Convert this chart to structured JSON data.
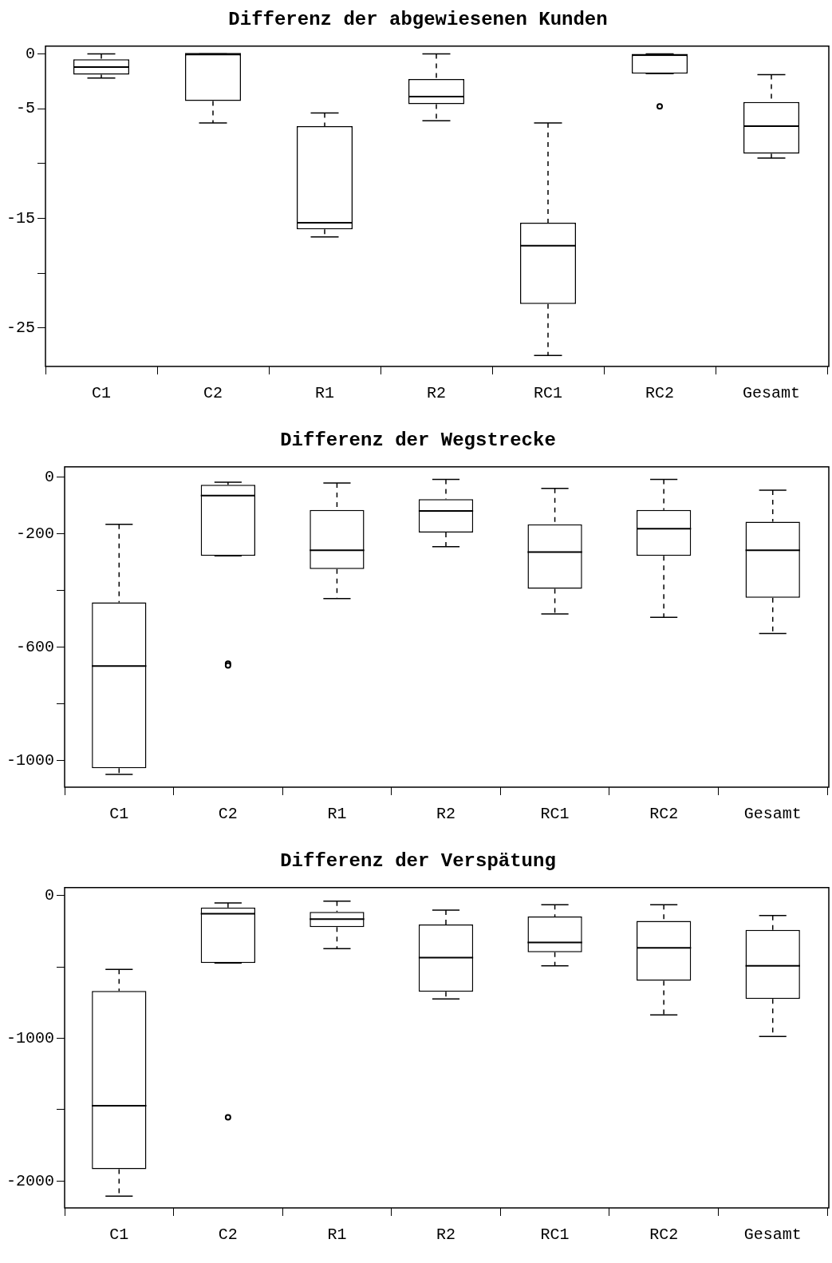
{
  "chart_data": [
    {
      "type": "box",
      "title": "Differenz der abgewiesenen Kunden",
      "categories": [
        "C1",
        "C2",
        "R1",
        "R2",
        "RC1",
        "RC2",
        "Gesamt"
      ],
      "ylim": [
        -28.5,
        0.7
      ],
      "yticks": [
        0,
        -5,
        {
          "value": -10,
          "label": null
        },
        -15,
        {
          "value": -20,
          "label": null
        },
        -25
      ],
      "boxes": [
        {
          "low": -2.2,
          "q1": -1.9,
          "median": -1.2,
          "q3": -0.5,
          "high": 0
        },
        {
          "low": -6.3,
          "q1": -4.3,
          "median": 0,
          "q3": 0,
          "high": 0
        },
        {
          "low": -16.7,
          "q1": -16.0,
          "median": -15.4,
          "q3": -6.6,
          "high": -5.4
        },
        {
          "low": -6.1,
          "q1": -4.6,
          "median": -3.9,
          "q3": -2.3,
          "high": 0
        },
        {
          "low": -27.5,
          "q1": -22.8,
          "median": -17.5,
          "q3": -15.4,
          "high": -6.3
        },
        {
          "low": -1.8,
          "q1": -1.8,
          "median": -0.1,
          "q3": -0.1,
          "high": 0,
          "outliers": [
            -4.8
          ]
        },
        {
          "low": -9.5,
          "q1": -9.1,
          "median": -6.6,
          "q3": -4.4,
          "high": -1.9
        }
      ]
    },
    {
      "type": "box",
      "title": "Differenz der Wegstrecke",
      "categories": [
        "C1",
        "C2",
        "R1",
        "R2",
        "RC1",
        "RC2",
        "Gesamt"
      ],
      "ylim": [
        -1093,
        35
      ],
      "yticks": [
        0,
        -200,
        {
          "value": -400,
          "label": null
        },
        -600,
        {
          "value": -800,
          "label": null
        },
        -1000
      ],
      "boxes": [
        {
          "low": -1048,
          "q1": -1026,
          "median": -666,
          "q3": -442,
          "high": -167
        },
        {
          "low": -278,
          "q1": -278,
          "median": -66,
          "q3": -28,
          "high": -19,
          "outliers": [
            -658,
            -664
          ]
        },
        {
          "low": -429,
          "q1": -325,
          "median": -259,
          "q3": -117,
          "high": -22
        },
        {
          "low": -246,
          "q1": -196,
          "median": -120,
          "q3": -79,
          "high": -9
        },
        {
          "low": -483,
          "q1": -394,
          "median": -265,
          "q3": -167,
          "high": -41
        },
        {
          "low": -495,
          "q1": -278,
          "median": -183,
          "q3": -117,
          "high": -9
        },
        {
          "low": -552,
          "q1": -426,
          "median": -259,
          "q3": -158,
          "high": -47
        }
      ]
    },
    {
      "type": "box",
      "title": "Differenz der Verspätung",
      "categories": [
        "C1",
        "C2",
        "R1",
        "R2",
        "RC1",
        "RC2",
        "Gesamt"
      ],
      "ylim": [
        -2189,
        57
      ],
      "yticks": [
        0,
        {
          "value": -500,
          "label": null
        },
        -1000,
        {
          "value": -1500,
          "label": null
        },
        -2000
      ],
      "boxes": [
        {
          "low": -2107,
          "q1": -1918,
          "median": -1472,
          "q3": -667,
          "high": -516
        },
        {
          "low": -472,
          "q1": -472,
          "median": -126,
          "q3": -82,
          "high": -50,
          "outliers": [
            -1553
          ]
        },
        {
          "low": -371,
          "q1": -220,
          "median": -164,
          "q3": -113,
          "high": -38
        },
        {
          "low": -723,
          "q1": -673,
          "median": -434,
          "q3": -201,
          "high": -101
        },
        {
          "low": -491,
          "q1": -396,
          "median": -327,
          "q3": -145,
          "high": -63
        },
        {
          "low": -836,
          "q1": -597,
          "median": -365,
          "q3": -176,
          "high": -63
        },
        {
          "low": -987,
          "q1": -723,
          "median": -491,
          "q3": -239,
          "high": -138
        }
      ]
    }
  ]
}
